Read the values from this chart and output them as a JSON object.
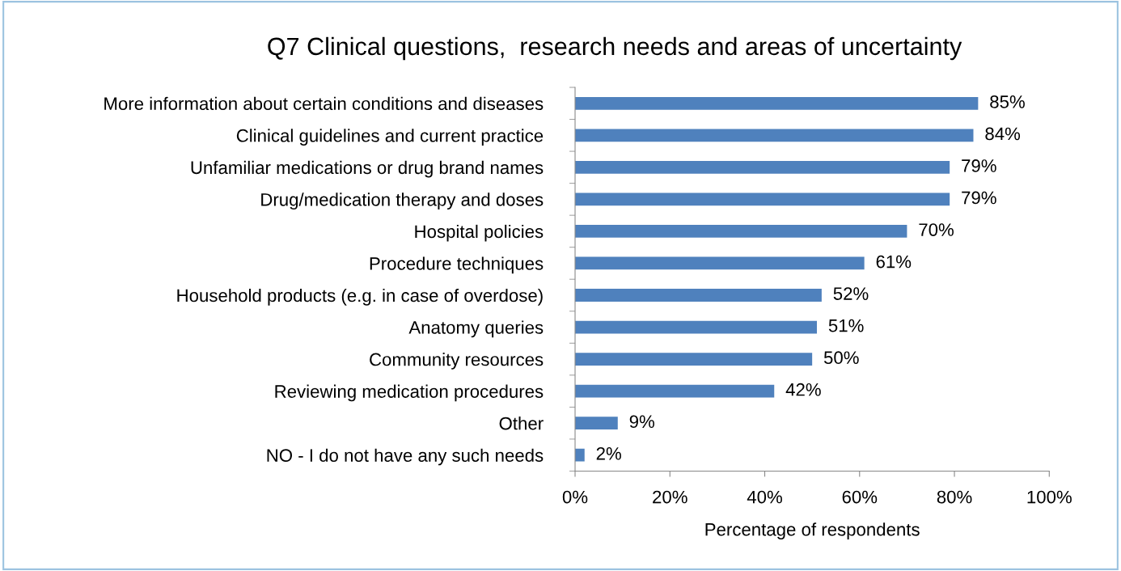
{
  "chart_data": {
    "type": "bar",
    "orientation": "horizontal",
    "title": "Q7 Clinical questions,  research needs and areas of uncertainty",
    "xlabel": "Percentage of respondents",
    "categories": [
      "More information about certain conditions and diseases",
      "Clinical guidelines and current practice",
      "Unfamiliar medications or drug brand names",
      "Drug/medication therapy and doses",
      "Hospital policies",
      "Procedure techniques",
      "Household products (e.g. in case of overdose)",
      "Anatomy queries",
      "Community resources",
      "Reviewing medication procedures",
      "Other",
      "NO - I do not have any such needs"
    ],
    "values": [
      85,
      84,
      79,
      79,
      70,
      61,
      52,
      51,
      50,
      42,
      9,
      2
    ],
    "value_labels": [
      "85%",
      "84%",
      "79%",
      "79%",
      "70%",
      "61%",
      "52%",
      "51%",
      "50%",
      "42%",
      "9%",
      "2%"
    ],
    "color": "#4f81bd",
    "xlim": [
      0,
      100
    ],
    "xticks": [
      {
        "value": 0,
        "label": "0%"
      },
      {
        "value": 20,
        "label": "20%"
      },
      {
        "value": 40,
        "label": "40%"
      },
      {
        "value": 60,
        "label": "60%"
      },
      {
        "value": 80,
        "label": "80%"
      },
      {
        "value": 100,
        "label": "100%"
      }
    ],
    "grid": false
  }
}
